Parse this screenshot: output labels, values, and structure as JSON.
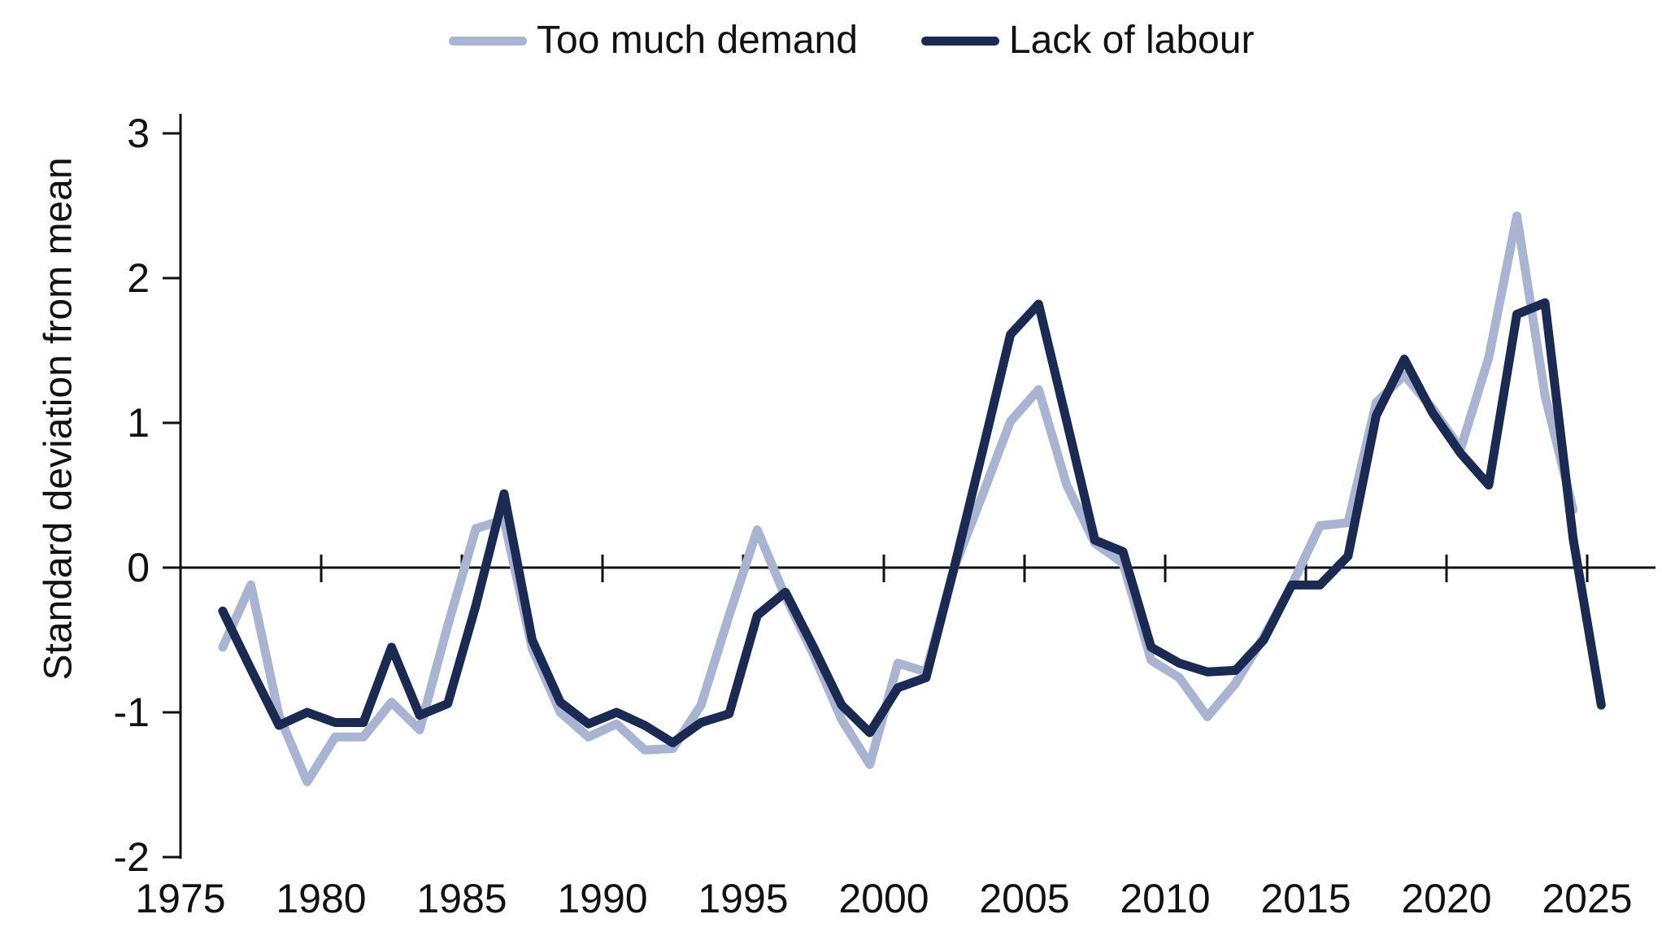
{
  "legend": {
    "items": [
      {
        "label": "Too much demand",
        "color": "#a9b4d3"
      },
      {
        "label": "Lack of labour",
        "color": "#1b2a52"
      }
    ]
  },
  "chart_data": {
    "type": "line",
    "title": "",
    "xlabel": "",
    "ylabel": "Standard deviation from mean",
    "grid": false,
    "legend_position": "top",
    "xlim": [
      1975,
      2026
    ],
    "ylim": [
      -2,
      3
    ],
    "x_ticks": [
      1975,
      1980,
      1985,
      1990,
      1995,
      2000,
      2005,
      2010,
      2015,
      2020,
      2025
    ],
    "y_ticks": [
      3,
      2,
      1,
      0,
      -1,
      -2
    ],
    "x": [
      1976,
      1977,
      1978,
      1979,
      1980,
      1981,
      1982,
      1983,
      1984,
      1985,
      1986,
      1987,
      1988,
      1989,
      1990,
      1991,
      1992,
      1993,
      1994,
      1995,
      1996,
      1997,
      1998,
      1999,
      2000,
      2001,
      2002,
      2003,
      2004,
      2005,
      2006,
      2007,
      2008,
      2009,
      2010,
      2011,
      2012,
      2013,
      2014,
      2015,
      2016,
      2017,
      2018,
      2019,
      2020,
      2021,
      2022,
      2023,
      2024,
      2025
    ],
    "series": [
      {
        "name": "Too much demand",
        "color": "#a9b4d3",
        "values": [
          -0.55,
          -0.12,
          -1.02,
          -1.48,
          -1.17,
          -1.17,
          -0.93,
          -1.12,
          -0.4,
          0.27,
          0.33,
          -0.56,
          -1.0,
          -1.17,
          -1.08,
          -1.26,
          -1.25,
          -0.95,
          -0.33,
          0.26,
          -0.2,
          -0.6,
          -1.05,
          -1.36,
          -0.66,
          -0.72,
          0.0,
          0.5,
          1.01,
          1.23,
          0.57,
          0.17,
          0.03,
          -0.64,
          -0.76,
          -1.03,
          -0.8,
          -0.48,
          -0.12,
          0.29,
          0.31,
          1.14,
          1.33,
          1.1,
          0.82,
          1.45,
          2.43,
          1.19,
          0.4,
          null
        ]
      },
      {
        "name": "Lack of labour",
        "color": "#1b2a52",
        "values": [
          -0.3,
          -0.7,
          -1.09,
          -1.0,
          -1.07,
          -1.07,
          -0.55,
          -1.02,
          -0.94,
          -0.26,
          0.51,
          -0.5,
          -0.93,
          -1.08,
          -1.0,
          -1.09,
          -1.21,
          -1.07,
          -1.01,
          -0.33,
          -0.17,
          -0.55,
          -0.95,
          -1.14,
          -0.83,
          -0.76,
          0.0,
          0.8,
          1.61,
          1.82,
          1.01,
          0.19,
          0.11,
          -0.55,
          -0.66,
          -0.72,
          -0.71,
          -0.5,
          -0.12,
          -0.12,
          0.08,
          1.05,
          1.44,
          1.07,
          0.79,
          0.57,
          1.75,
          1.83,
          0.2,
          -0.95
        ]
      }
    ]
  }
}
